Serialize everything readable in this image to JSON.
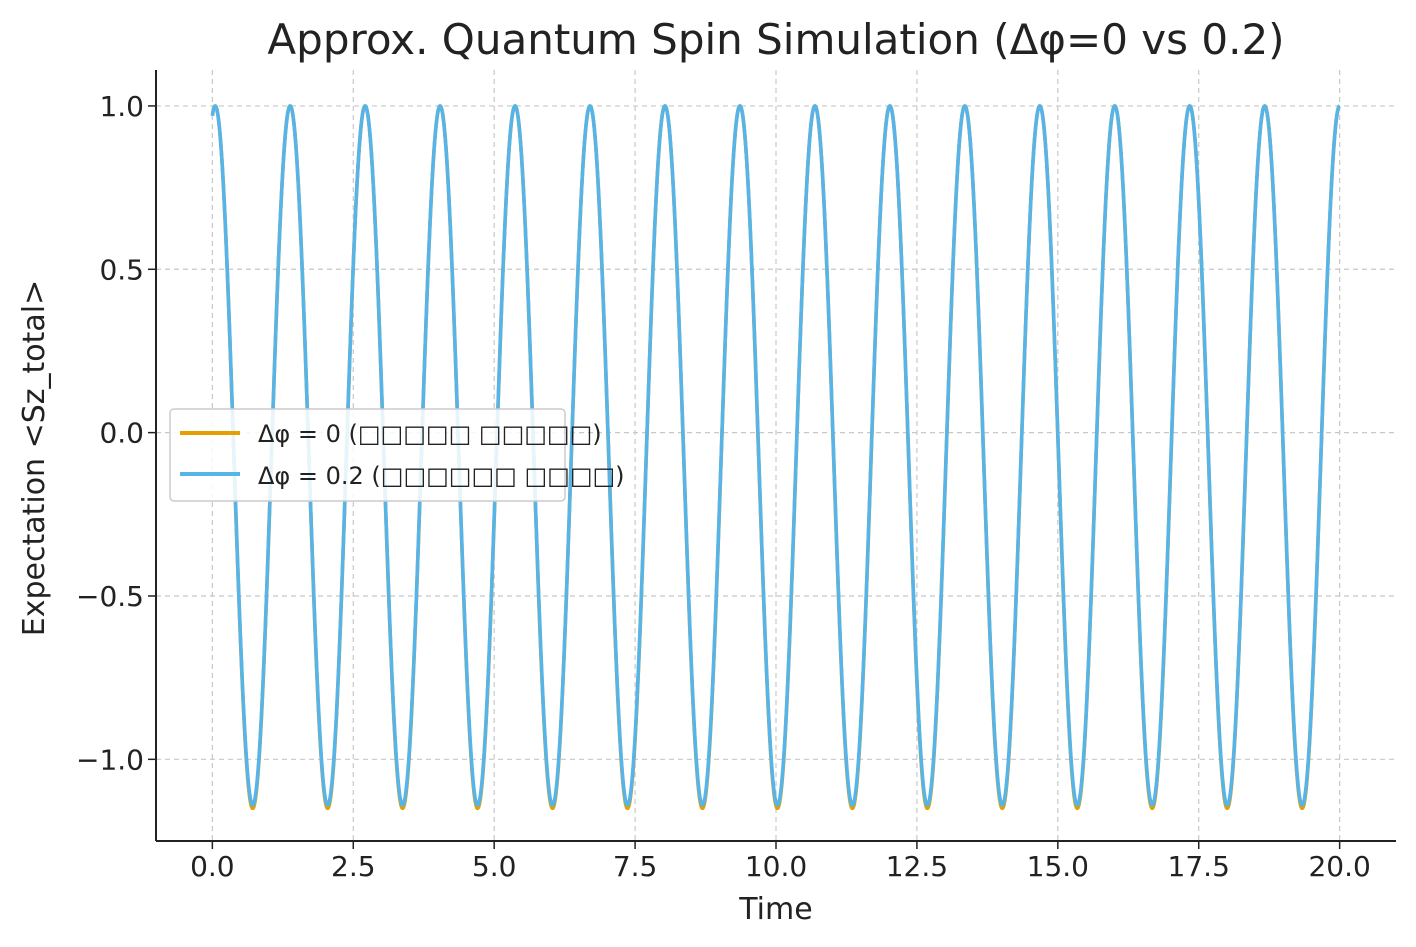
{
  "chart_data": {
    "type": "line",
    "title": "Approx. Quantum Spin Simulation (Δφ=0 vs 0.2)",
    "xlabel": "Time",
    "ylabel": "Expectation <Sz_total>",
    "xlim": [
      -1.0,
      21.0
    ],
    "ylim": [
      -1.25,
      1.11
    ],
    "xticks": [
      0.0,
      2.5,
      5.0,
      7.5,
      10.0,
      12.5,
      15.0,
      17.5,
      20.0
    ],
    "xtick_labels": [
      "0.0",
      "2.5",
      "5.0",
      "7.5",
      "10.0",
      "12.5",
      "15.0",
      "17.5",
      "20.0"
    ],
    "yticks": [
      1.0,
      0.5,
      0.0,
      -0.5,
      -1.0
    ],
    "ytick_labels": [
      "1.0",
      "0.5",
      "0.0",
      "−0.5",
      "−1.0"
    ],
    "grid": true,
    "legend_position": "center-left",
    "x_range": [
      0.0,
      20.0
    ],
    "period": 1.33,
    "series": [
      {
        "name": "Δφ = 0 (□□□□□ □□□□□)",
        "color": "#E69F00",
        "y_start": 0.97,
        "y_max": 1.0,
        "y_min": -1.15
      },
      {
        "name": "Δφ = 0.2 (□□□□□□ □□□□)",
        "color": "#56B4E9",
        "y_start": 0.97,
        "y_max": 1.0,
        "y_min": -1.14
      }
    ]
  }
}
